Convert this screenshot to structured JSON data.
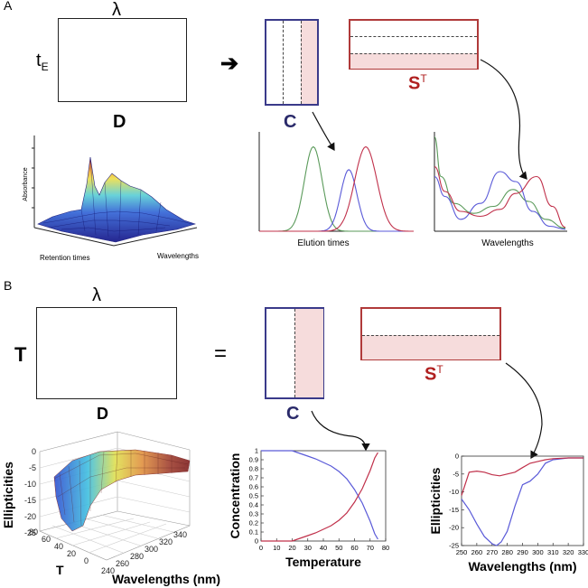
{
  "panelA": {
    "label": "A",
    "lambda": "λ",
    "tE_main": "t",
    "tE_sub": "E",
    "D": "D",
    "arrow": "➔",
    "C": "C",
    "S_main": "S",
    "S_sup": "T",
    "surface": {
      "ylabel": "Absorbance",
      "xlabel": "Retention times",
      "zlabel": "Wavelengths"
    },
    "elution": {
      "xlabel": "Elution times"
    },
    "spectra": {
      "xlabel": "Wavelengths"
    }
  },
  "panelB": {
    "label": "B",
    "lambda": "λ",
    "T": "T",
    "D": "D",
    "equals": "=",
    "C": "C",
    "S_main": "S",
    "S_sup": "T",
    "surface": {
      "ylabel": "Ellipticities",
      "yticks": [
        "0",
        "-5",
        "-10",
        "-15",
        "-20",
        "-25"
      ],
      "tlabel": "T",
      "tticks": [
        "80",
        "60",
        "40",
        "20",
        "0"
      ],
      "wlabel": "Wavelengths (nm)",
      "wticks": [
        "240",
        "260",
        "280",
        "300",
        "320",
        "340"
      ]
    }
  },
  "colors": {
    "navy": "#3a3a8a",
    "red": "#b03a3a",
    "pink": "#f6dcdc",
    "blue": "#5a5ad8",
    "green": "#5a9a5a",
    "crimson": "#c0304a"
  },
  "chart_data": [
    {
      "type": "line",
      "title": "",
      "xlabel": "Elution times",
      "ylabel": "",
      "series": [
        {
          "name": "green",
          "shape": "gaussian",
          "center": 0.35,
          "width": 0.12,
          "height": 0.85
        },
        {
          "name": "blue",
          "shape": "gaussian",
          "center": 0.58,
          "width": 0.11,
          "height": 0.62
        },
        {
          "name": "red",
          "shape": "gaussian",
          "center": 0.69,
          "width": 0.15,
          "height": 0.85
        }
      ]
    },
    {
      "type": "line",
      "title": "",
      "xlabel": "Wavelengths",
      "ylabel": "",
      "series": [
        {
          "name": "green",
          "points": [
            [
              0,
              0.95
            ],
            [
              0.05,
              0.55
            ],
            [
              0.15,
              0.28
            ],
            [
              0.3,
              0.18
            ],
            [
              0.45,
              0.25
            ],
            [
              0.6,
              0.42
            ],
            [
              0.72,
              0.3
            ],
            [
              0.85,
              0.12
            ],
            [
              1,
              0.03
            ]
          ]
        },
        {
          "name": "blue",
          "points": [
            [
              0,
              0.55
            ],
            [
              0.08,
              0.35
            ],
            [
              0.2,
              0.12
            ],
            [
              0.35,
              0.28
            ],
            [
              0.5,
              0.6
            ],
            [
              0.62,
              0.5
            ],
            [
              0.75,
              0.2
            ],
            [
              0.88,
              0.05
            ],
            [
              1,
              0.02
            ]
          ]
        },
        {
          "name": "red",
          "points": [
            [
              0,
              0.65
            ],
            [
              0.08,
              0.4
            ],
            [
              0.2,
              0.2
            ],
            [
              0.35,
              0.15
            ],
            [
              0.5,
              0.22
            ],
            [
              0.62,
              0.38
            ],
            [
              0.78,
              0.55
            ],
            [
              0.9,
              0.25
            ],
            [
              1,
              0.04
            ]
          ]
        }
      ]
    },
    {
      "type": "line",
      "title": "",
      "xlabel": "Temperature",
      "ylabel": "Concentration",
      "xlim": [
        0,
        80
      ],
      "ylim": [
        0,
        1
      ],
      "xticks": [
        "0",
        "10",
        "20",
        "30",
        "40",
        "50",
        "60",
        "70",
        "80"
      ],
      "yticks": [
        "0",
        "0.1",
        "0.2",
        "0.3",
        "0.4",
        "0.5",
        "0.6",
        "0.7",
        "0.8",
        "0.9",
        "1"
      ],
      "series": [
        {
          "name": "blue",
          "x": [
            0,
            10,
            20,
            25,
            30,
            35,
            40,
            45,
            50,
            55,
            60,
            65,
            70,
            73,
            75
          ],
          "y": [
            1,
            1,
            1,
            0.97,
            0.94,
            0.91,
            0.87,
            0.83,
            0.77,
            0.69,
            0.57,
            0.42,
            0.22,
            0.08,
            0.02
          ]
        },
        {
          "name": "red",
          "x": [
            0,
            10,
            20,
            25,
            30,
            35,
            40,
            45,
            50,
            55,
            60,
            65,
            70,
            73,
            75
          ],
          "y": [
            0,
            0,
            0,
            0.03,
            0.06,
            0.09,
            0.13,
            0.17,
            0.23,
            0.31,
            0.43,
            0.58,
            0.78,
            0.92,
            0.98
          ]
        }
      ]
    },
    {
      "type": "line",
      "title": "",
      "xlabel": "Wavelengths (nm)",
      "ylabel": "Ellipticities",
      "xlim": [
        250,
        330
      ],
      "ylim": [
        -25,
        0
      ],
      "xticks": [
        "250",
        "260",
        "270",
        "280",
        "290",
        "300",
        "310",
        "320",
        "330"
      ],
      "yticks": [
        "0",
        "-5",
        "-10",
        "-15",
        "-20",
        "-25"
      ],
      "series": [
        {
          "name": "blue",
          "x": [
            250,
            255,
            260,
            265,
            270,
            273,
            276,
            280,
            285,
            290,
            295,
            300,
            305,
            310,
            320,
            330
          ],
          "y": [
            -12,
            -15,
            -19,
            -22.5,
            -24.5,
            -25,
            -24,
            -21,
            -14,
            -8,
            -7,
            -5,
            -2,
            -1,
            -0.5,
            -0.5
          ]
        },
        {
          "name": "red",
          "x": [
            250,
            255,
            260,
            265,
            270,
            275,
            280,
            285,
            290,
            295,
            300,
            305,
            310,
            320,
            330
          ],
          "y": [
            -11,
            -4.5,
            -4.2,
            -4.5,
            -5.2,
            -5.5,
            -5,
            -4.5,
            -3.2,
            -2,
            -1.5,
            -1,
            -0.7,
            -0.5,
            -0.5
          ]
        }
      ]
    }
  ]
}
